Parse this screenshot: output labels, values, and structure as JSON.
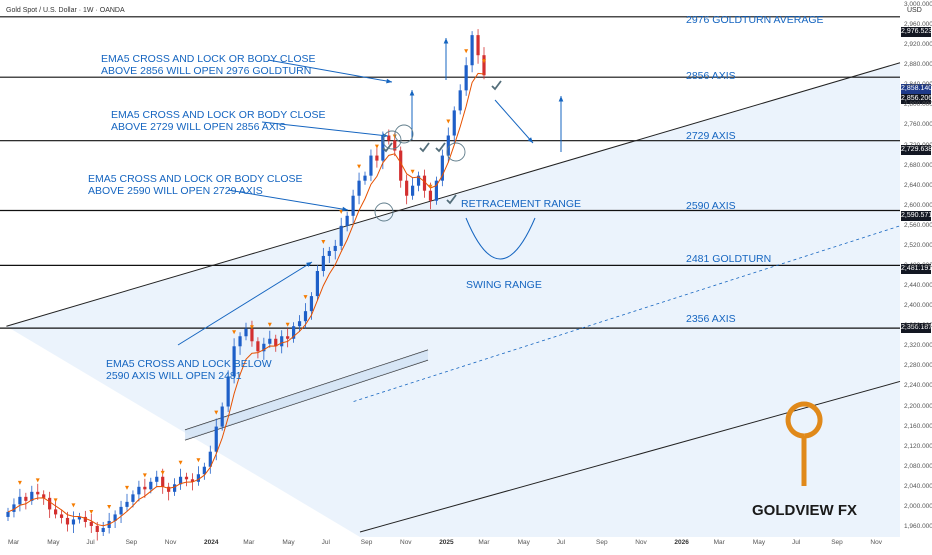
{
  "header": {
    "symbol": "Gold Spot / U.S. Dollar · 1W · OANDA",
    "currency": "USD"
  },
  "annotations": [
    {
      "id": "ann1",
      "line1": "EMA5 CROSS AND LOCK OR BODY CLOSE",
      "line2": "ABOVE 2856 WILL OPEN 2976 GOLDTURN"
    },
    {
      "id": "ann2",
      "line1": "EMA5 CROSS AND LOCK OR BODY CLOSE",
      "line2": "ABOVE 2729 WILL OPEN 2856 AXIS"
    },
    {
      "id": "ann3",
      "line1": "EMA5 CROSS AND LOCK OR BODY CLOSE",
      "line2": "ABOVE 2590 WILL OPEN 2729 AXIS"
    },
    {
      "id": "ann4",
      "line1": "EMA5 CROSS AND LOCK BELOW",
      "line2": "2590 AXIS WILL OPEN 2481"
    },
    {
      "id": "retracement",
      "line1": "RETRACEMENT RANGE",
      "line2": ""
    },
    {
      "id": "swing",
      "line1": "SWING RANGE",
      "line2": ""
    }
  ],
  "levels": [
    {
      "name": "2976 GOLDTURN AVERAGE",
      "value": 2976.523,
      "tag": "2,976.523"
    },
    {
      "name": "2856 AXIS",
      "value": 2856.206,
      "tag": "2,856.206"
    },
    {
      "name": "2729 AXIS",
      "value": 2729.638,
      "tag": "2,729.638"
    },
    {
      "name": "2590 AXIS",
      "value": 2590.571,
      "tag": "2,590.571"
    },
    {
      "name": "2481 GOLDTURN",
      "value": 2481.191,
      "tag": "2,481.191"
    },
    {
      "name": "2356 AXIS",
      "value": 2356.187,
      "tag": "2,356.187"
    }
  ],
  "price_tag": {
    "value": 2858.14,
    "label": "2,858.140"
  },
  "chart_data": {
    "type": "candlestick",
    "y_axis_label": "USD",
    "ylim": [
      1940,
      3010
    ],
    "y_ticks": [
      1960,
      2000,
      2040,
      2080,
      2120,
      2160,
      2200,
      2240,
      2280,
      2320,
      2360,
      2400,
      2440,
      2480,
      2520,
      2560,
      2600,
      2640,
      2680,
      2720,
      2760,
      2800,
      2840,
      2880,
      2920,
      2960,
      3000
    ],
    "x_ticks": [
      "Mar",
      "May",
      "Jul",
      "Sep",
      "Nov",
      "2024",
      "Mar",
      "May",
      "Jul",
      "Sep",
      "Nov",
      "2025",
      "Mar",
      "May",
      "Jul",
      "Sep",
      "Nov",
      "2026",
      "Mar",
      "May",
      "Jul",
      "Sep",
      "Nov"
    ],
    "bold_x_ticks": [
      "2024",
      "2025",
      "2026"
    ],
    "closes": [
      1990,
      2005,
      2020,
      2012,
      2030,
      2025,
      2018,
      1995,
      1985,
      1978,
      1965,
      1975,
      1980,
      1970,
      1962,
      1950,
      1958,
      1972,
      1985,
      2000,
      2010,
      2025,
      2040,
      2035,
      2050,
      2060,
      2040,
      2030,
      2045,
      2060,
      2055,
      2050,
      2065,
      2080,
      2110,
      2160,
      2200,
      2260,
      2320,
      2340,
      2355,
      2330,
      2310,
      2325,
      2335,
      2320,
      2340,
      2335,
      2360,
      2370,
      2390,
      2420,
      2470,
      2500,
      2510,
      2520,
      2560,
      2580,
      2620,
      2650,
      2660,
      2700,
      2690,
      2740,
      2730,
      2710,
      2650,
      2620,
      2640,
      2660,
      2630,
      2610,
      2650,
      2700,
      2740,
      2790,
      2830,
      2880,
      2940,
      2900,
      2860
    ],
    "trend_channel": {
      "upper_start": [
        1,
        2360
      ],
      "upper_end": [
        140,
        2885
      ],
      "dotted_start": [
        55,
        2210
      ],
      "dotted_end": [
        140,
        2560
      ],
      "lower_start": [
        56,
        1950
      ],
      "lower_end": [
        140,
        2250
      ]
    },
    "x_range": [
      0,
      140
    ]
  }
}
